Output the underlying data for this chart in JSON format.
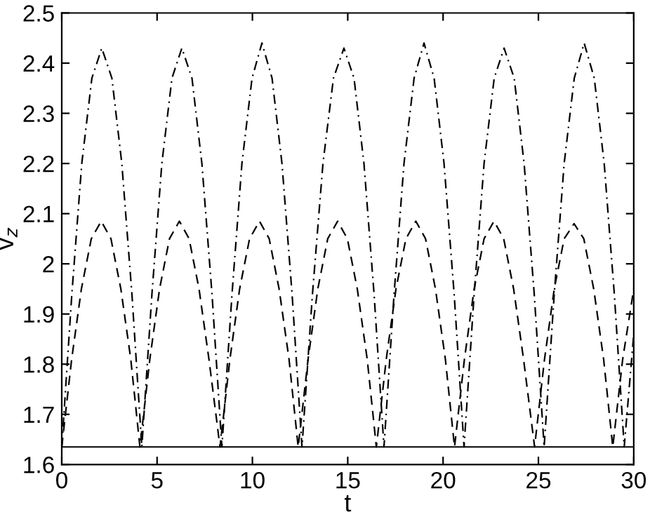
{
  "chart_data": {
    "type": "line",
    "xlabel": "t",
    "ylabel": "v$_{z}$",
    "xlim": [
      0,
      30
    ],
    "ylim": [
      1.6,
      2.5
    ],
    "xticks": [
      0,
      5,
      10,
      15,
      20,
      25,
      30
    ],
    "yticks": [
      1.6,
      1.7,
      1.8,
      1.9,
      2,
      2.1,
      2.2,
      2.3,
      2.4,
      2.5
    ],
    "grid": false,
    "marker": "none",
    "series": [
      {
        "color": "#000000",
        "line_style": "solid",
        "x": [
          0,
          30
        ],
        "values": [
          1.635,
          1.635
        ]
      },
      {
        "color": "#000000",
        "line_style": "dashed",
        "x": [
          0,
          0.52,
          1.03,
          1.55,
          2.07,
          2.58,
          3.1,
          3.62,
          4.1,
          4.62,
          5.13,
          5.65,
          6.17,
          6.68,
          7.2,
          7.72,
          8.3,
          8.82,
          9.33,
          9.85,
          10.37,
          10.88,
          11.4,
          11.92,
          12.4,
          12.92,
          13.43,
          13.95,
          14.47,
          14.98,
          15.5,
          16.02,
          16.5,
          17.02,
          17.53,
          18.05,
          18.57,
          19.08,
          19.6,
          20.12,
          20.6,
          21.12,
          21.63,
          22.15,
          22.67,
          23.18,
          23.7,
          24.22,
          24.8,
          25.32,
          25.83,
          26.35,
          26.87,
          27.38,
          27.9,
          28.42,
          28.9,
          29.42,
          30
        ],
        "values": [
          1.635,
          1.81,
          1.95,
          2.05,
          2.085,
          2.05,
          1.95,
          1.81,
          1.635,
          1.81,
          1.95,
          2.05,
          2.085,
          2.05,
          1.95,
          1.81,
          1.635,
          1.81,
          1.95,
          2.05,
          2.085,
          2.05,
          1.95,
          1.81,
          1.635,
          1.81,
          1.95,
          2.05,
          2.085,
          2.05,
          1.95,
          1.81,
          1.635,
          1.81,
          1.95,
          2.05,
          2.085,
          2.05,
          1.95,
          1.81,
          1.635,
          1.81,
          1.95,
          2.05,
          2.085,
          2.05,
          1.95,
          1.81,
          1.635,
          1.81,
          1.95,
          2.05,
          2.08,
          2.05,
          1.95,
          1.81,
          1.635,
          1.81,
          1.95
        ]
      },
      {
        "color": "#000000",
        "line_style": "dashdot",
        "x": [
          0,
          0.53,
          1.05,
          1.58,
          2.1,
          2.63,
          3.15,
          3.68,
          4.2,
          4.73,
          5.25,
          5.78,
          6.3,
          6.83,
          7.35,
          7.88,
          8.4,
          8.93,
          9.45,
          9.98,
          10.5,
          11.03,
          11.55,
          12.08,
          12.6,
          13.15,
          13.7,
          14.25,
          14.8,
          15.33,
          15.85,
          16.38,
          16.9,
          17.43,
          17.95,
          18.48,
          19.0,
          19.53,
          20.05,
          20.58,
          21.1,
          21.63,
          22.15,
          22.68,
          23.2,
          23.73,
          24.25,
          24.78,
          25.3,
          25.83,
          26.35,
          26.88,
          27.4,
          27.93,
          28.45,
          28.98,
          29.5,
          30
        ],
        "values": [
          1.635,
          1.94,
          2.2,
          2.37,
          2.43,
          2.37,
          2.2,
          1.94,
          1.635,
          1.94,
          2.2,
          2.37,
          2.43,
          2.37,
          2.2,
          1.94,
          1.635,
          1.94,
          2.2,
          2.37,
          2.44,
          2.37,
          2.2,
          1.94,
          1.635,
          1.94,
          2.2,
          2.37,
          2.43,
          2.37,
          2.2,
          1.94,
          1.635,
          1.94,
          2.2,
          2.37,
          2.44,
          2.37,
          2.2,
          1.94,
          1.635,
          1.94,
          2.2,
          2.37,
          2.43,
          2.37,
          2.2,
          1.94,
          1.635,
          1.94,
          2.2,
          2.37,
          2.44,
          2.37,
          2.2,
          1.94,
          1.635,
          1.86
        ]
      }
    ]
  }
}
